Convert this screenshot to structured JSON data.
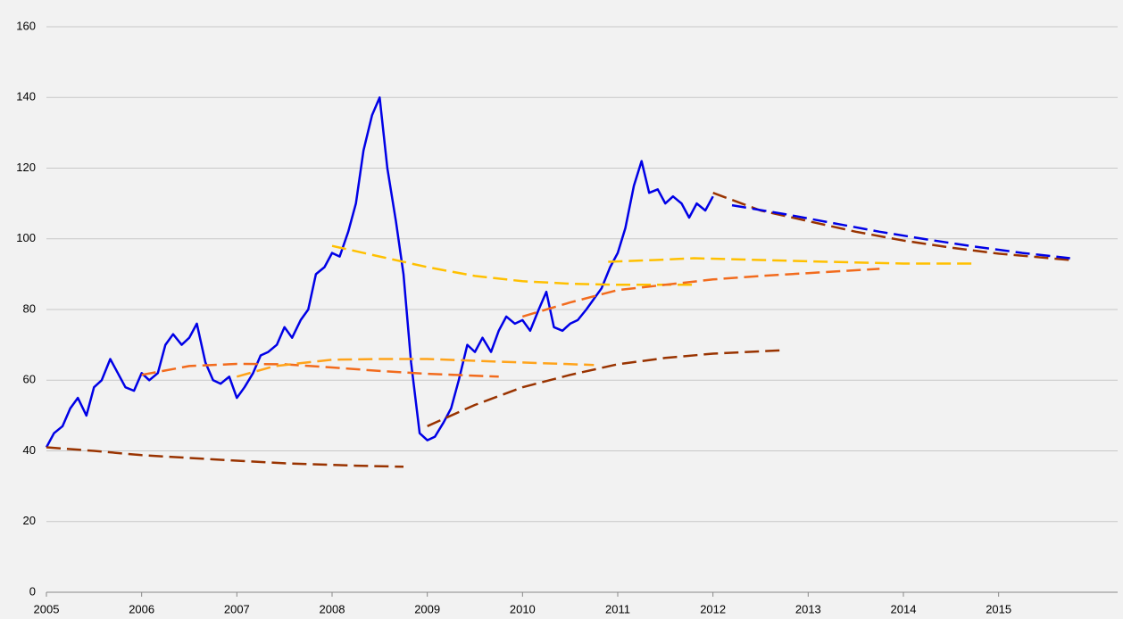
{
  "chart_data": {
    "type": "line",
    "xlim": [
      2005,
      2016.25
    ],
    "xticks": [
      2005,
      2006,
      2007,
      2008,
      2009,
      2010,
      2011,
      2012,
      2013,
      2014,
      2015
    ],
    "ylim": [
      0,
      160
    ],
    "yticks": [
      0,
      20,
      40,
      60,
      80,
      100,
      120,
      140,
      160
    ],
    "grid": true,
    "series": [
      {
        "color": "#0000e6",
        "dashed": false,
        "x": [
          2005,
          2005.08,
          2005.17,
          2005.25,
          2005.33,
          2005.42,
          2005.5,
          2005.58,
          2005.67,
          2005.75,
          2005.83,
          2005.92,
          2006,
          2006.08,
          2006.17,
          2006.25,
          2006.33,
          2006.42,
          2006.5,
          2006.58,
          2006.67,
          2006.75,
          2006.83,
          2006.92,
          2007,
          2007.08,
          2007.17,
          2007.25,
          2007.33,
          2007.42,
          2007.5,
          2007.58,
          2007.67,
          2007.75,
          2007.83,
          2007.92,
          2008,
          2008.08,
          2008.17,
          2008.25,
          2008.33,
          2008.42,
          2008.5,
          2008.58,
          2008.67,
          2008.75,
          2008.83,
          2008.92,
          2009,
          2009.08,
          2009.17,
          2009.25,
          2009.33,
          2009.42,
          2009.5,
          2009.58,
          2009.67,
          2009.75,
          2009.83,
          2009.92,
          2010,
          2010.08,
          2010.17,
          2010.25,
          2010.33,
          2010.42,
          2010.5,
          2010.58,
          2010.67,
          2010.75,
          2010.83,
          2010.92,
          2011,
          2011.08,
          2011.17,
          2011.25,
          2011.33,
          2011.42,
          2011.5,
          2011.58,
          2011.67,
          2011.75,
          2011.83,
          2011.92,
          2012
        ],
        "values": [
          41,
          45,
          47,
          52,
          55,
          50,
          58,
          60,
          66,
          62,
          58,
          57,
          62,
          60,
          62,
          70,
          73,
          70,
          72,
          76,
          65,
          60,
          59,
          61,
          55,
          58,
          62,
          67,
          68,
          70,
          75,
          72,
          77,
          80,
          90,
          92,
          96,
          95,
          102,
          110,
          125,
          135,
          140,
          120,
          105,
          90,
          65,
          45,
          43,
          44,
          48,
          52,
          60,
          70,
          68,
          72,
          68,
          74,
          78,
          76,
          77,
          74,
          80,
          85,
          75,
          74,
          76,
          77,
          80,
          83,
          86,
          92,
          96,
          103,
          115,
          122,
          113,
          114,
          110,
          112,
          110,
          106,
          110,
          108,
          112
        ]
      },
      {
        "color": "#993300",
        "dashed": true,
        "x": [
          2005,
          2005.5,
          2006,
          2006.75,
          2007.5,
          2008.25,
          2008.75
        ],
        "values": [
          41,
          40,
          38.8,
          37.6,
          36.5,
          35.8,
          35.5
        ]
      },
      {
        "color": "#f26b1d",
        "dashed": true,
        "x": [
          2006,
          2006.5,
          2007,
          2007.5,
          2008,
          2008.5,
          2009,
          2009.75
        ],
        "values": [
          61.5,
          64,
          64.6,
          64.5,
          63.6,
          62.6,
          61.8,
          61
        ]
      },
      {
        "color": "#ffa31a",
        "dashed": true,
        "x": [
          2007,
          2007.4,
          2008,
          2008.5,
          2009,
          2009.5,
          2010,
          2010.75
        ],
        "values": [
          61,
          64,
          65.8,
          66,
          66,
          65.5,
          65,
          64.3
        ]
      },
      {
        "color": "#ffc000",
        "dashed": true,
        "x": [
          2008,
          2008.5,
          2009,
          2009.5,
          2010,
          2010.5,
          2011,
          2011.8
        ],
        "values": [
          98,
          95,
          92,
          89.5,
          88,
          87.3,
          87,
          87
        ]
      },
      {
        "color": "#993300",
        "dashed": true,
        "x": [
          2009,
          2009.5,
          2010,
          2010.5,
          2011,
          2011.5,
          2012,
          2012.75
        ],
        "values": [
          47,
          53,
          58,
          61.5,
          64.5,
          66.3,
          67.5,
          68.5
        ]
      },
      {
        "color": "#f26b1d",
        "dashed": true,
        "x": [
          2010,
          2010.5,
          2011,
          2011.5,
          2012,
          2012.5,
          2013,
          2013.75
        ],
        "values": [
          78,
          82,
          85.5,
          87,
          88.5,
          89.5,
          90.3,
          91.5
        ]
      },
      {
        "color": "#ffc000",
        "dashed": true,
        "x": [
          2010.9,
          2011.4,
          2011.8,
          2012.5,
          2013.2,
          2014,
          2014.75
        ],
        "values": [
          93.5,
          94,
          94.5,
          94,
          93.5,
          93,
          93
        ]
      },
      {
        "color": "#993300",
        "dashed": true,
        "x": [
          2012,
          2012.5,
          2013,
          2013.5,
          2014,
          2014.5,
          2015,
          2015.75
        ],
        "values": [
          113,
          108,
          105,
          102,
          99.5,
          97.5,
          95.8,
          94
        ]
      },
      {
        "color": "#0000e6",
        "dashed": true,
        "x": [
          2012.2,
          2012.75,
          2013.25,
          2013.75,
          2014.25,
          2014.75,
          2015.25,
          2015.75
        ],
        "values": [
          109.5,
          107,
          104.5,
          102,
          99.8,
          97.8,
          96,
          94.5
        ]
      }
    ]
  }
}
